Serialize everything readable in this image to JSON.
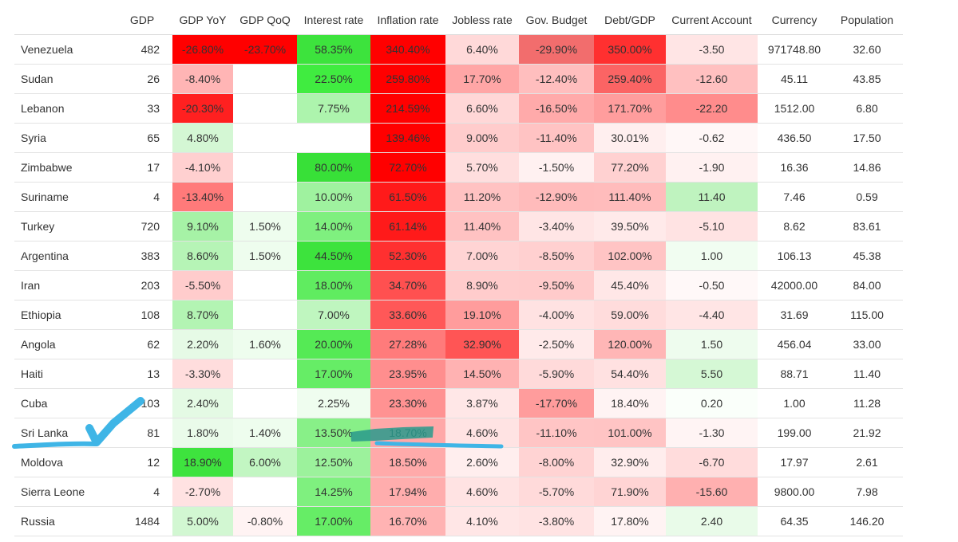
{
  "table": {
    "columns": [
      "",
      "GDP",
      "GDP YoY",
      "GDP QoQ",
      "Interest rate",
      "Inflation rate",
      "Jobless rate",
      "Gov. Budget",
      "Debt/GDP",
      "Current Account",
      "Currency",
      "Population"
    ],
    "rows": [
      {
        "cells": [
          "Venezuela",
          "482",
          "-26.80%",
          "-23.70%",
          "58.35%",
          "340.40%",
          "6.40%",
          "-29.90%",
          "350.00%",
          "-3.50",
          "971748.80",
          "32.60"
        ],
        "colors": [
          "",
          "",
          "#ff0000",
          "#ff0000",
          "#3de33d",
          "#ff0000",
          "#ffd9d9",
          "#f26d6d",
          "#ff3030",
          "#ffe5e5",
          "",
          ""
        ]
      },
      {
        "cells": [
          "Sudan",
          "26",
          "-8.40%",
          "",
          "22.50%",
          "259.80%",
          "17.70%",
          "-12.40%",
          "259.40%",
          "-12.60",
          "45.11",
          "43.85"
        ],
        "colors": [
          "",
          "",
          "#ffb5b5",
          "",
          "#40ec40",
          "#ff0000",
          "#ffa6a6",
          "#ffbebe",
          "#fb6464",
          "#ffc0c0",
          "",
          ""
        ]
      },
      {
        "cells": [
          "Lebanon",
          "33",
          "-20.30%",
          "",
          "7.75%",
          "214.59%",
          "6.60%",
          "-16.50%",
          "171.70%",
          "-22.20",
          "1512.00",
          "6.80"
        ],
        "colors": [
          "",
          "",
          "#ff2020",
          "",
          "#adf4ad",
          "#ff0000",
          "#ffd7d7",
          "#ffaaaa",
          "#ff9d9d",
          "#ff8c8c",
          "",
          ""
        ]
      },
      {
        "cells": [
          "Syria",
          "65",
          "4.80%",
          "",
          "",
          "139.46%",
          "9.00%",
          "-11.40%",
          "30.01%",
          "-0.62",
          "436.50",
          "17.50"
        ],
        "colors": [
          "",
          "",
          "#d4f7d4",
          "",
          "",
          "#ff0000",
          "#ffcccc",
          "#ffc3c3",
          "#ffefef",
          "#fff7f7",
          "",
          ""
        ]
      },
      {
        "cells": [
          "Zimbabwe",
          "17",
          "-4.10%",
          "",
          "80.00%",
          "72.70%",
          "5.70%",
          "-1.50%",
          "77.20%",
          "-1.90",
          "16.36",
          "14.86"
        ],
        "colors": [
          "",
          "",
          "#ffd0d0",
          "",
          "#38e038",
          "#ff0000",
          "#ffdede",
          "#fff1f1",
          "#ffd1d1",
          "#fff1f1",
          "",
          ""
        ]
      },
      {
        "cells": [
          "Suriname",
          "4",
          "-13.40%",
          "",
          "10.00%",
          "61.50%",
          "11.20%",
          "-12.90%",
          "111.40%",
          "11.40",
          "7.46",
          "0.59"
        ],
        "colors": [
          "",
          "",
          "#ff7a7a",
          "",
          "#9ff29f",
          "#ff1a1a",
          "#ffc2c2",
          "#ffbbbb",
          "#ffbcbc",
          "#bff3bf",
          "",
          ""
        ]
      },
      {
        "cells": [
          "Turkey",
          "720",
          "9.10%",
          "1.50%",
          "14.00%",
          "61.14%",
          "11.40%",
          "-3.40%",
          "39.50%",
          "-5.10",
          "8.62",
          "83.61"
        ],
        "colors": [
          "",
          "",
          "#a6f2a6",
          "#eefdee",
          "#7ff07f",
          "#ff1a1a",
          "#ffc2c2",
          "#ffe5e5",
          "#ffeaea",
          "#ffe3e3",
          "",
          ""
        ]
      },
      {
        "cells": [
          "Argentina",
          "383",
          "8.60%",
          "1.50%",
          "44.50%",
          "52.30%",
          "7.00%",
          "-8.50%",
          "102.00%",
          "1.00",
          "106.13",
          "45.38"
        ],
        "colors": [
          "",
          "",
          "#b6f4b6",
          "#eefdee",
          "#3de33d",
          "#ff3030",
          "#ffd4d4",
          "#ffd0d0",
          "#ffc4c4",
          "#f1fdf1",
          "",
          ""
        ]
      },
      {
        "cells": [
          "Iran",
          "203",
          "-5.50%",
          "",
          "18.00%",
          "34.70%",
          "8.90%",
          "-9.50%",
          "45.40%",
          "-0.50",
          "42000.00",
          "84.00"
        ],
        "colors": [
          "",
          "",
          "#ffcccc",
          "",
          "#60ec60",
          "#ff5050",
          "#ffcccc",
          "#ffcbcb",
          "#ffe7e7",
          "#fff8f8",
          "",
          ""
        ]
      },
      {
        "cells": [
          "Ethiopia",
          "108",
          "8.70%",
          "",
          "7.00%",
          "33.60%",
          "19.10%",
          "-4.00%",
          "59.00%",
          "-4.40",
          "31.69",
          "115.00"
        ],
        "colors": [
          "",
          "",
          "#b3f4b3",
          "",
          "#bff6bf",
          "#ff5858",
          "#ff9c9c",
          "#ffe2e2",
          "#ffdcdc",
          "#ffe5e5",
          "",
          ""
        ]
      },
      {
        "cells": [
          "Angola",
          "62",
          "2.20%",
          "1.60%",
          "20.00%",
          "27.28%",
          "32.90%",
          "-2.50%",
          "120.00%",
          "1.50",
          "456.04",
          "33.00"
        ],
        "colors": [
          "",
          "",
          "#e6fae6",
          "#eefdee",
          "#55ea55",
          "#ff7b7b",
          "#ff5555",
          "#ffeaea",
          "#ffb6b6",
          "#eefcee",
          "",
          ""
        ]
      },
      {
        "cells": [
          "Haiti",
          "13",
          "-3.30%",
          "",
          "17.00%",
          "23.95%",
          "14.50%",
          "-5.90%",
          "54.40%",
          "5.50",
          "88.71",
          "11.40"
        ],
        "colors": [
          "",
          "",
          "#ffdddd",
          "",
          "#66ed66",
          "#ff8e8e",
          "#ffb2b2",
          "#ffdada",
          "#ffe1e1",
          "#d5f8d5",
          "",
          ""
        ]
      },
      {
        "cells": [
          "Cuba",
          "103",
          "2.40%",
          "",
          "2.25%",
          "23.30%",
          "3.87%",
          "-17.70%",
          "18.40%",
          "0.20",
          "1.00",
          "11.28"
        ],
        "colors": [
          "",
          "",
          "#e4fae4",
          "",
          "#effdef",
          "#ff9292",
          "#ffe7e7",
          "#ff9c9c",
          "#fff3f3",
          "#fafffa",
          "",
          ""
        ]
      },
      {
        "cells": [
          "Sri Lanka",
          "81",
          "1.80%",
          "1.40%",
          "13.50%",
          "18.70%",
          "4.60%",
          "-11.10%",
          "101.00%",
          "-1.30",
          "199.00",
          "21.92"
        ],
        "colors": [
          "",
          "",
          "#eafbea",
          "#eefdee",
          "#88f088",
          "#ffa8a8",
          "#ffe3e3",
          "#ffc5c5",
          "#ffc4c4",
          "#fff4f4",
          "",
          ""
        ]
      },
      {
        "cells": [
          "Moldova",
          "12",
          "18.90%",
          "6.00%",
          "12.50%",
          "18.50%",
          "2.60%",
          "-8.00%",
          "32.90%",
          "-6.70",
          "17.97",
          "2.61"
        ],
        "colors": [
          "",
          "",
          "#3ee33e",
          "#c2f6c2",
          "#9cf29c",
          "#ffaaaa",
          "#ffeeee",
          "#ffd3d3",
          "#ffeded",
          "#ffdcdc",
          "",
          ""
        ]
      },
      {
        "cells": [
          "Sierra Leone",
          "4",
          "-2.70%",
          "",
          "14.25%",
          "17.94%",
          "4.60%",
          "-5.70%",
          "71.90%",
          "-15.60",
          "9800.00",
          "7.98"
        ],
        "colors": [
          "",
          "",
          "#ffe2e2",
          "",
          "#7ff07f",
          "#ffadad",
          "#ffe3e3",
          "#ffdada",
          "#ffd4d4",
          "#ffb0b0",
          "",
          ""
        ]
      },
      {
        "cells": [
          "Russia",
          "1484",
          "5.00%",
          "-0.80%",
          "17.00%",
          "16.70%",
          "4.10%",
          "-3.80%",
          "17.80%",
          "2.40",
          "64.35",
          "146.20"
        ],
        "colors": [
          "",
          "",
          "#d2f7d2",
          "#fff3f3",
          "#66ed66",
          "#ffb3b3",
          "#ffe6e6",
          "#ffe3e3",
          "#fff3f3",
          "#e9fbe9",
          "",
          ""
        ]
      }
    ]
  },
  "annotations": {
    "marker_color": "#3fb5e6",
    "highlight_color": "#2a9a8c"
  }
}
